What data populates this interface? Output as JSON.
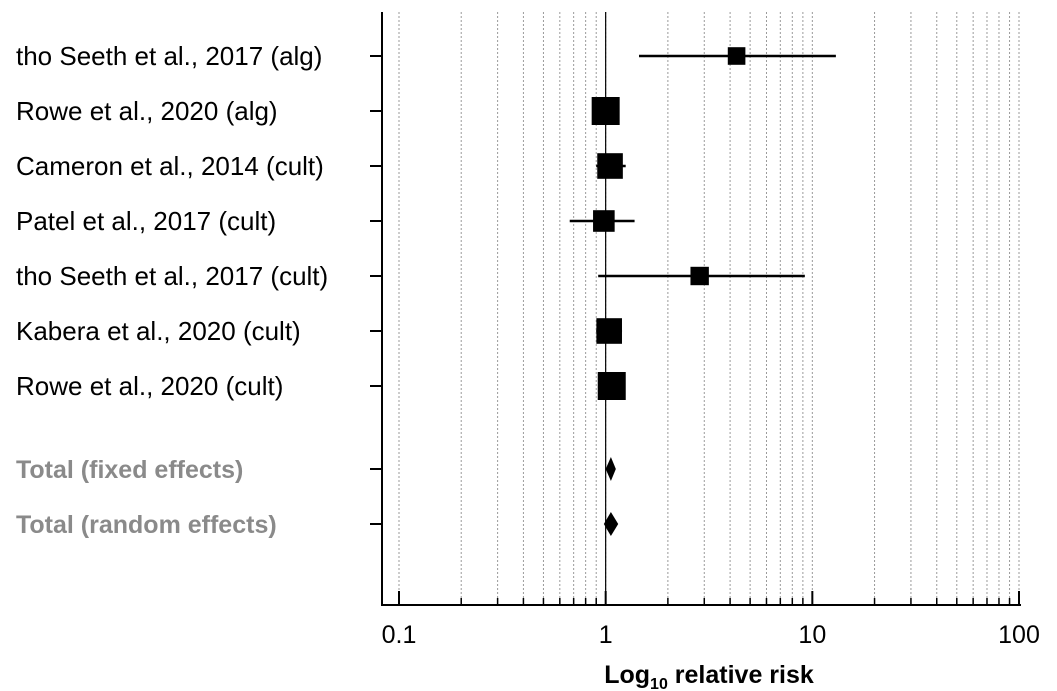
{
  "chart_data": {
    "type": "forest",
    "xscale": "log",
    "xlim": [
      0.1,
      100
    ],
    "xticks": [
      "0.1",
      "1",
      "10",
      "100"
    ],
    "xlabel": {
      "base": "Log",
      "sub": "10",
      "rest": " relative risk"
    },
    "reference_line": 1,
    "grid": "vertical dotted at minor log ticks",
    "studies": [
      {
        "label": "tho Seeth et al., 2017 (alg)",
        "estimate": 4.3,
        "lower": 1.45,
        "upper": 13.0,
        "weight": 0.35
      },
      {
        "label": "Rowe et al., 2020 (alg)",
        "estimate": 1.0,
        "lower": 0.93,
        "upper": 1.12,
        "weight": 1.0
      },
      {
        "label": "Cameron et al., 2014 (cult)",
        "estimate": 1.05,
        "lower": 0.9,
        "upper": 1.25,
        "weight": 0.85
      },
      {
        "label": "Patel et al., 2017 (cult)",
        "estimate": 0.98,
        "lower": 0.67,
        "upper": 1.38,
        "weight": 0.6
      },
      {
        "label": "tho Seeth et al., 2017 (cult)",
        "estimate": 2.85,
        "lower": 0.92,
        "upper": 9.2,
        "weight": 0.4
      },
      {
        "label": "Kabera et al., 2020 (cult)",
        "estimate": 1.04,
        "lower": 0.9,
        "upper": 1.2,
        "weight": 0.85
      },
      {
        "label": "Rowe et al., 2020 (cult)",
        "estimate": 1.07,
        "lower": 0.95,
        "upper": 1.2,
        "weight": 1.0
      }
    ],
    "totals": [
      {
        "label": "Total (fixed effects)",
        "estimate": 1.06,
        "lower": 1.0,
        "upper": 1.12
      },
      {
        "label": "Total (random effects)",
        "estimate": 1.06,
        "lower": 0.98,
        "upper": 1.15
      }
    ]
  }
}
